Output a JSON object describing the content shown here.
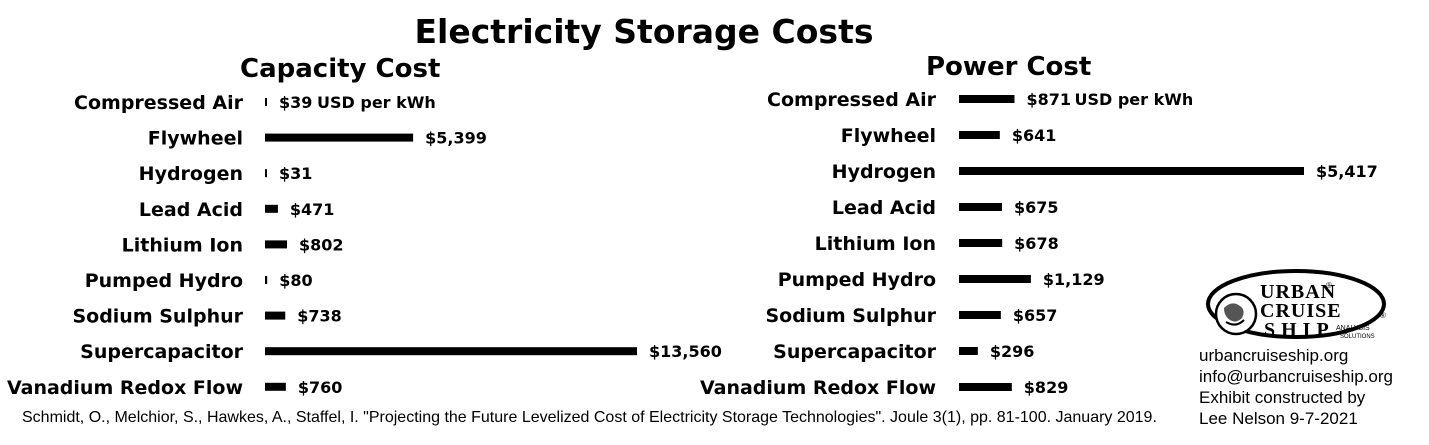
{
  "title": "Electricity Storage Costs",
  "chart_data": [
    {
      "type": "bar",
      "orientation": "horizontal",
      "title": "Capacity Cost",
      "unit_label": "USD per kWh",
      "categories": [
        "Compressed Air",
        "Flywheel",
        "Hydrogen",
        "Lead Acid",
        "Lithium Ion",
        "Pumped Hydro",
        "Sodium Sulphur",
        "Supercapacitor",
        "Vanadium Redox Flow"
      ],
      "values": [
        39,
        5399,
        31,
        471,
        802,
        80,
        738,
        13560,
        760
      ],
      "labels": [
        "$39",
        "$5,399",
        "$31",
        "$471",
        "$802",
        "$80",
        "$738",
        "$13,560",
        "$760"
      ],
      "bar_color": "#000000"
    },
    {
      "type": "bar",
      "orientation": "horizontal",
      "title": "Power Cost",
      "unit_label": "USD per kWh",
      "categories": [
        "Compressed Air",
        "Flywheel",
        "Hydrogen",
        "Lead Acid",
        "Lithium Ion",
        "Pumped Hydro",
        "Sodium Sulphur",
        "Supercapacitor",
        "Vanadium Redox Flow"
      ],
      "values": [
        871,
        641,
        5417,
        675,
        678,
        1129,
        657,
        296,
        829
      ],
      "labels": [
        "$871",
        "$641",
        "$5,417",
        "$675",
        "$678",
        "$1,129",
        "$657",
        "$296",
        "$829"
      ],
      "bar_color": "#000000"
    }
  ],
  "citation": "Schmidt, O., Melchior, S., Hawkes, A., Staffel, I. \"Projecting the Future Levelized Cost of Electricity Storage Technologies\". Joule 3(1), pp. 81-100. January 2019.",
  "logo": {
    "line1": "URBAN",
    "line2": "CRUISE",
    "line3": "SHIP",
    "tagline1": "ANALYSIS",
    "tagline2": "SOLUTIONS",
    "registered": "®"
  },
  "contact": {
    "website": "urbancruiseship.org",
    "email": "info@urbancruiseship.org",
    "credit_line1": "Exhibit constructed by",
    "credit_line2": "Lee Nelson 9-7-2021"
  }
}
